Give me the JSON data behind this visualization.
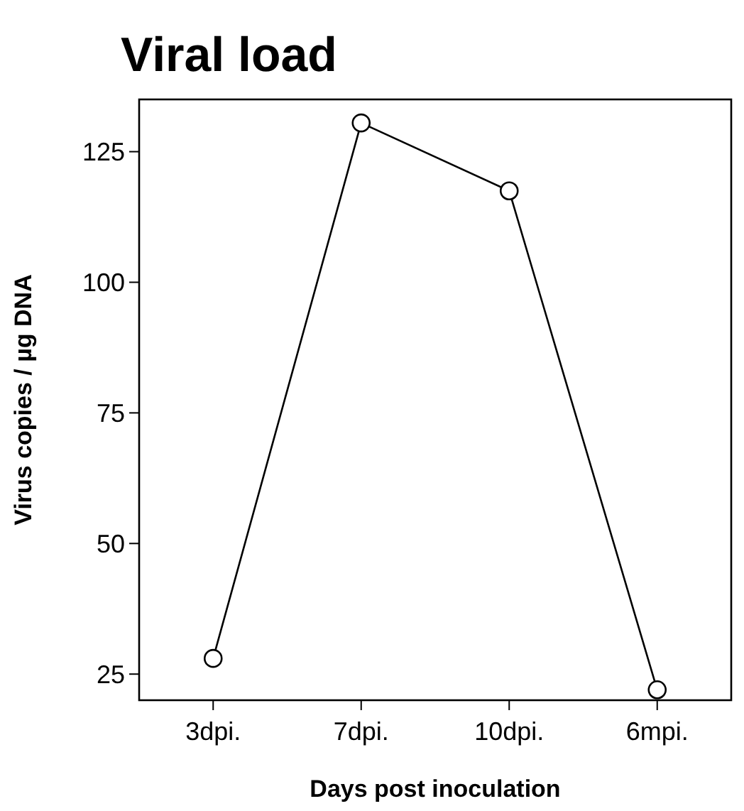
{
  "chart_data": {
    "type": "line",
    "title": "Viral load",
    "xlabel": "Days post inoculation",
    "ylabel": "Virus copies / µg DNA",
    "categories": [
      "3dpi.",
      "7dpi.",
      "10dpi.",
      "6mpi."
    ],
    "series": [
      {
        "color": "#000000",
        "values": [
          28,
          130.5,
          117.5,
          22
        ]
      }
    ],
    "ylim": [
      20,
      135
    ],
    "yticks": [
      25,
      50,
      75,
      100,
      125
    ],
    "marker": "circle",
    "line_style": "solid"
  }
}
